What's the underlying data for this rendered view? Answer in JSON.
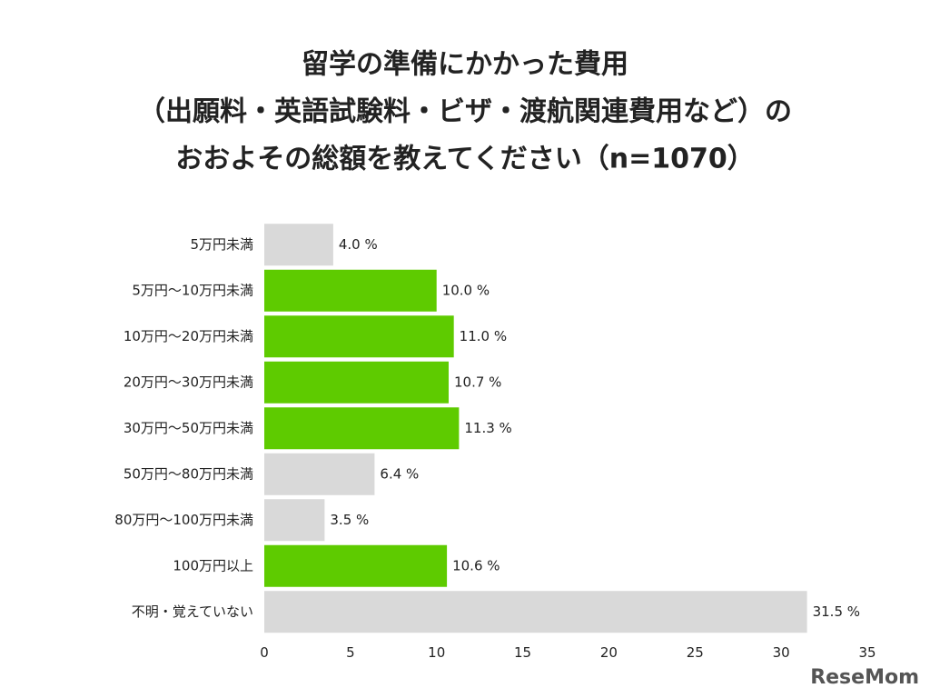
{
  "chart_data": {
    "type": "barh",
    "title": [
      "留学の準備にかかった費用",
      "（出願料・英語試験料・ビザ・渡航関連費用など）の",
      "おおよその総額を教えてください（n=1070）"
    ],
    "categories": [
      "5万円未満",
      "5万円〜10万円未満",
      "10万円〜20万円未満",
      "20万円〜30万円未満",
      "30万円〜50万円未満",
      "50万円〜80万円未満",
      "80万円〜100万円未満",
      "100万円以上",
      "不明・覚えていない"
    ],
    "values": [
      4.0,
      10.0,
      11.0,
      10.7,
      11.3,
      6.4,
      3.5,
      10.6,
      31.5
    ],
    "value_labels": [
      "4.0 %",
      "10.0 %",
      "11.0 %",
      "10.7 %",
      "11.3 %",
      "6.4 %",
      "3.5 %",
      "10.6 %",
      "31.5 %"
    ],
    "colors": [
      "#d9d9d9",
      "#5ecb00",
      "#5ecb00",
      "#5ecb00",
      "#5ecb00",
      "#d9d9d9",
      "#d9d9d9",
      "#5ecb00",
      "#d9d9d9"
    ],
    "xlim": [
      0,
      35
    ],
    "xticks": [
      0,
      5,
      10,
      15,
      20,
      25,
      30,
      35
    ],
    "grid": false,
    "watermark": "ReseMom"
  }
}
